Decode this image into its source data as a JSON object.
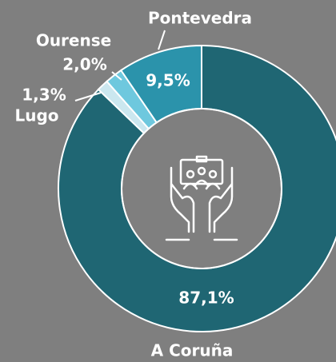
{
  "chart_data": {
    "type": "donut",
    "categories": [
      "A Coruña",
      "Lugo",
      "Ourense",
      "Pontevedra"
    ],
    "values": [
      87.1,
      1.3,
      2.0,
      9.5
    ],
    "value_labels": [
      "87,1%",
      "1,3%",
      "2,0%",
      "9,5%"
    ],
    "colors": [
      "#1f6673",
      "#cbe7ef",
      "#6ec8de",
      "#2b93ab"
    ]
  }
}
